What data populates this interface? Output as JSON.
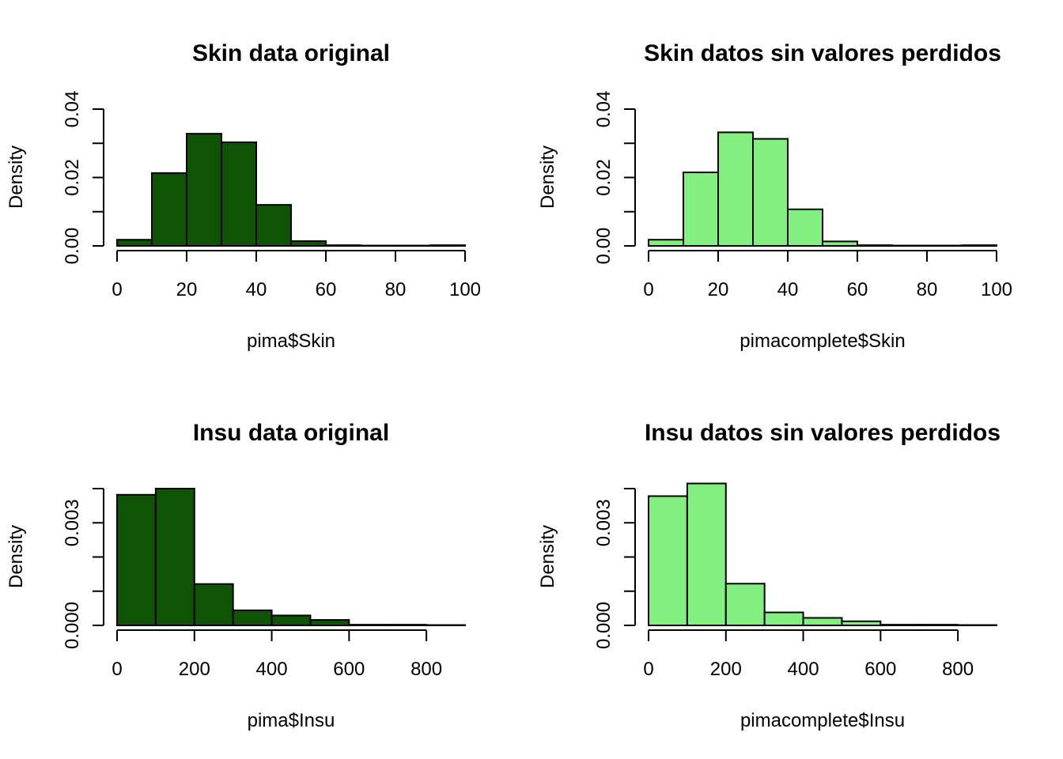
{
  "chart_data": [
    {
      "type": "bar",
      "title": "Skin data original",
      "xlabel": "pima$Skin",
      "ylabel": "Density",
      "fill_color": "#0e5306",
      "bin_edges": [
        0,
        10,
        20,
        30,
        40,
        50,
        60,
        70,
        80,
        90,
        100
      ],
      "values": [
        0.0018,
        0.0213,
        0.0328,
        0.0303,
        0.012,
        0.0014,
        0.0002,
        0.0001,
        0.0001,
        0.0002
      ],
      "xlim": [
        0,
        100
      ],
      "ylim": [
        0,
        0.04
      ],
      "x_ticks": [
        0,
        20,
        40,
        60,
        80,
        100
      ],
      "x_tick_labels": [
        "0",
        "20",
        "40",
        "60",
        "80",
        "100"
      ],
      "y_ticks": [
        0,
        0.01,
        0.02,
        0.03,
        0.04
      ],
      "y_tick_labels": [
        "0.00",
        "",
        "0.02",
        "",
        "0.04"
      ]
    },
    {
      "type": "bar",
      "title": "Skin datos sin valores perdidos",
      "xlabel": "pimacomplete$Skin",
      "ylabel": "Density",
      "fill_color": "#83ef80",
      "bin_edges": [
        0,
        10,
        20,
        30,
        40,
        50,
        60,
        70,
        80,
        90,
        100
      ],
      "values": [
        0.0018,
        0.0215,
        0.0332,
        0.0313,
        0.0107,
        0.0013,
        0.0002,
        0.0001,
        0.0001,
        0.0002
      ],
      "xlim": [
        0,
        100
      ],
      "ylim": [
        0,
        0.04
      ],
      "x_ticks": [
        0,
        20,
        40,
        60,
        80,
        100
      ],
      "x_tick_labels": [
        "0",
        "20",
        "40",
        "60",
        "80",
        "100"
      ],
      "y_ticks": [
        0,
        0.01,
        0.02,
        0.03,
        0.04
      ],
      "y_tick_labels": [
        "0.00",
        "",
        "0.02",
        "",
        "0.04"
      ]
    },
    {
      "type": "bar",
      "title": "Insu data original",
      "xlabel": "pima$Insu",
      "ylabel": "Density",
      "fill_color": "#0e5306",
      "bin_edges": [
        0,
        100,
        200,
        300,
        400,
        500,
        600,
        700,
        800,
        900
      ],
      "values": [
        0.00382,
        0.004,
        0.00121,
        0.00044,
        0.00029,
        0.00016,
        2e-05,
        2e-05,
        1e-05
      ],
      "xlim": [
        0,
        900
      ],
      "ylim": [
        0,
        0.004
      ],
      "x_ticks": [
        0,
        200,
        400,
        600,
        800
      ],
      "x_tick_labels": [
        "0",
        "200",
        "400",
        "600",
        "800"
      ],
      "y_ticks": [
        0,
        0.001,
        0.002,
        0.003,
        0.004
      ],
      "y_tick_labels": [
        "0.000",
        "",
        "",
        "0.003",
        ""
      ]
    },
    {
      "type": "bar",
      "title": "Insu datos sin valores perdidos",
      "xlabel": "pimacomplete$Insu",
      "ylabel": "Density",
      "fill_color": "#83ef80",
      "bin_edges": [
        0,
        100,
        200,
        300,
        400,
        500,
        600,
        700,
        800,
        900
      ],
      "values": [
        0.00378,
        0.00415,
        0.00122,
        0.00038,
        0.00022,
        0.00012,
        2e-05,
        2e-05,
        1e-05
      ],
      "xlim": [
        0,
        900
      ],
      "ylim": [
        0,
        0.004
      ],
      "x_ticks": [
        0,
        200,
        400,
        600,
        800
      ],
      "x_tick_labels": [
        "0",
        "200",
        "400",
        "600",
        "800"
      ],
      "y_ticks": [
        0,
        0.001,
        0.002,
        0.003,
        0.004
      ],
      "y_tick_labels": [
        "0.000",
        "",
        "",
        "0.003",
        ""
      ]
    }
  ]
}
